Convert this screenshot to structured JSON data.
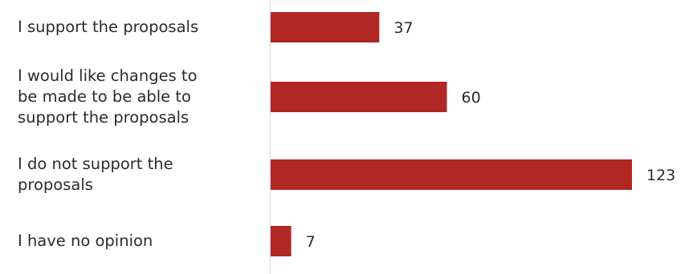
{
  "chart_data": {
    "type": "bar",
    "orientation": "horizontal",
    "categories": [
      "I support the proposals",
      "I would like changes to be made to be able to support the proposals",
      "I do not support the proposals",
      "I have no opinion"
    ],
    "category_lines": [
      [
        "I support the proposals"
      ],
      [
        "I would like changes to",
        "be made to be able to",
        "support the proposals"
      ],
      [
        "I do not support the",
        "proposals"
      ],
      [
        "I have no opinion"
      ]
    ],
    "values": [
      37,
      60,
      123,
      7
    ],
    "data_labels": [
      "37",
      "60",
      "123",
      "7"
    ],
    "title": "",
    "xlabel": "",
    "ylabel": "",
    "xlim": [
      0,
      123
    ],
    "grid": false,
    "legend": "none",
    "bar_color": "#b02724",
    "axis_line_color": "#d9d9d9"
  }
}
